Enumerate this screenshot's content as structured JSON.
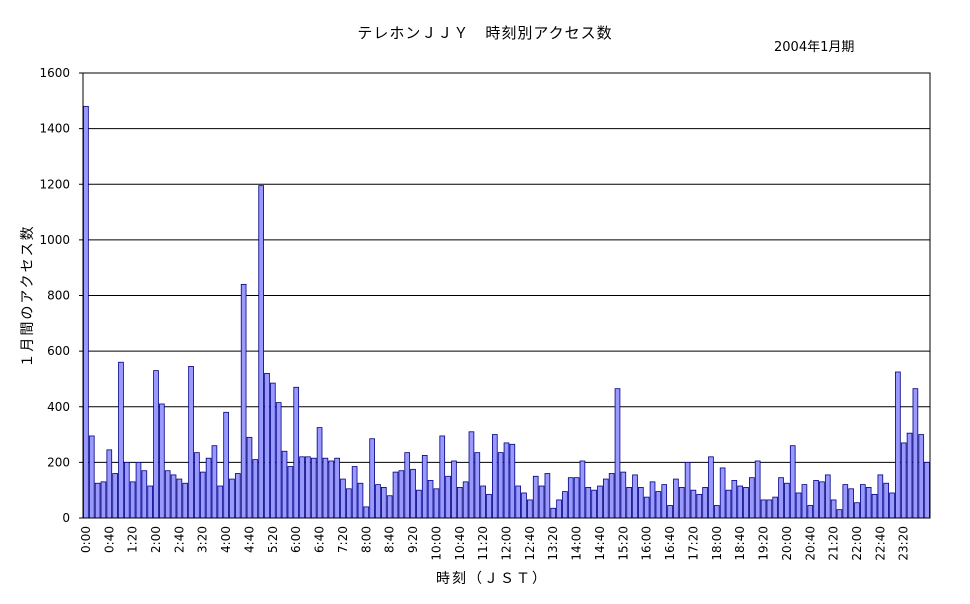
{
  "chart_data": {
    "type": "bar",
    "title": "テレホンＪＪＹ　時刻別アクセス数",
    "subtitle": "2004年1月期",
    "xlabel": "時刻（ＪＳＴ）",
    "ylabel": "１月間のアクセス数",
    "ylim": [
      0,
      1600
    ],
    "yticks": [
      0,
      200,
      400,
      600,
      800,
      1000,
      1200,
      1400,
      1600
    ],
    "grid": true,
    "bar_color": "#9999ff",
    "bar_stroke": "#000080",
    "x_tick_labels": [
      "0:00",
      "0:40",
      "1:20",
      "2:00",
      "2:40",
      "3:20",
      "4:00",
      "4:40",
      "5:20",
      "6:00",
      "6:40",
      "7:20",
      "8:00",
      "8:40",
      "9:20",
      "10:00",
      "10:40",
      "11:20",
      "12:00",
      "12:40",
      "13:20",
      "14:00",
      "14:40",
      "15:20",
      "16:00",
      "16:40",
      "17:20",
      "18:00",
      "18:40",
      "19:20",
      "20:00",
      "20:40",
      "21:20",
      "22:00",
      "22:40",
      "23:20"
    ],
    "values": [
      1480,
      295,
      125,
      130,
      245,
      160,
      560,
      200,
      130,
      200,
      170,
      115,
      530,
      410,
      170,
      155,
      140,
      125,
      545,
      235,
      165,
      215,
      260,
      115,
      380,
      140,
      160,
      840,
      290,
      210,
      1195,
      520,
      485,
      415,
      240,
      185,
      470,
      220,
      220,
      215,
      325,
      215,
      205,
      215,
      140,
      105,
      185,
      125,
      40,
      285,
      120,
      110,
      80,
      165,
      170,
      235,
      175,
      100,
      225,
      135,
      105,
      295,
      150,
      205,
      110,
      130,
      310,
      235,
      115,
      85,
      300,
      235,
      270,
      265,
      115,
      90,
      65,
      150,
      115,
      160,
      35,
      65,
      95,
      145,
      145,
      205,
      110,
      100,
      115,
      140,
      160,
      465,
      165,
      110,
      155,
      110,
      75,
      130,
      95,
      120,
      45,
      140,
      110,
      200,
      100,
      85,
      110,
      220,
      45,
      180,
      100,
      135,
      115,
      110,
      145,
      205,
      65,
      65,
      75,
      145,
      125,
      260,
      90,
      120,
      45,
      135,
      130,
      155,
      65,
      30,
      120,
      105,
      55,
      120,
      110,
      85,
      155,
      125,
      90,
      525,
      270,
      305,
      465,
      300,
      200
    ]
  }
}
